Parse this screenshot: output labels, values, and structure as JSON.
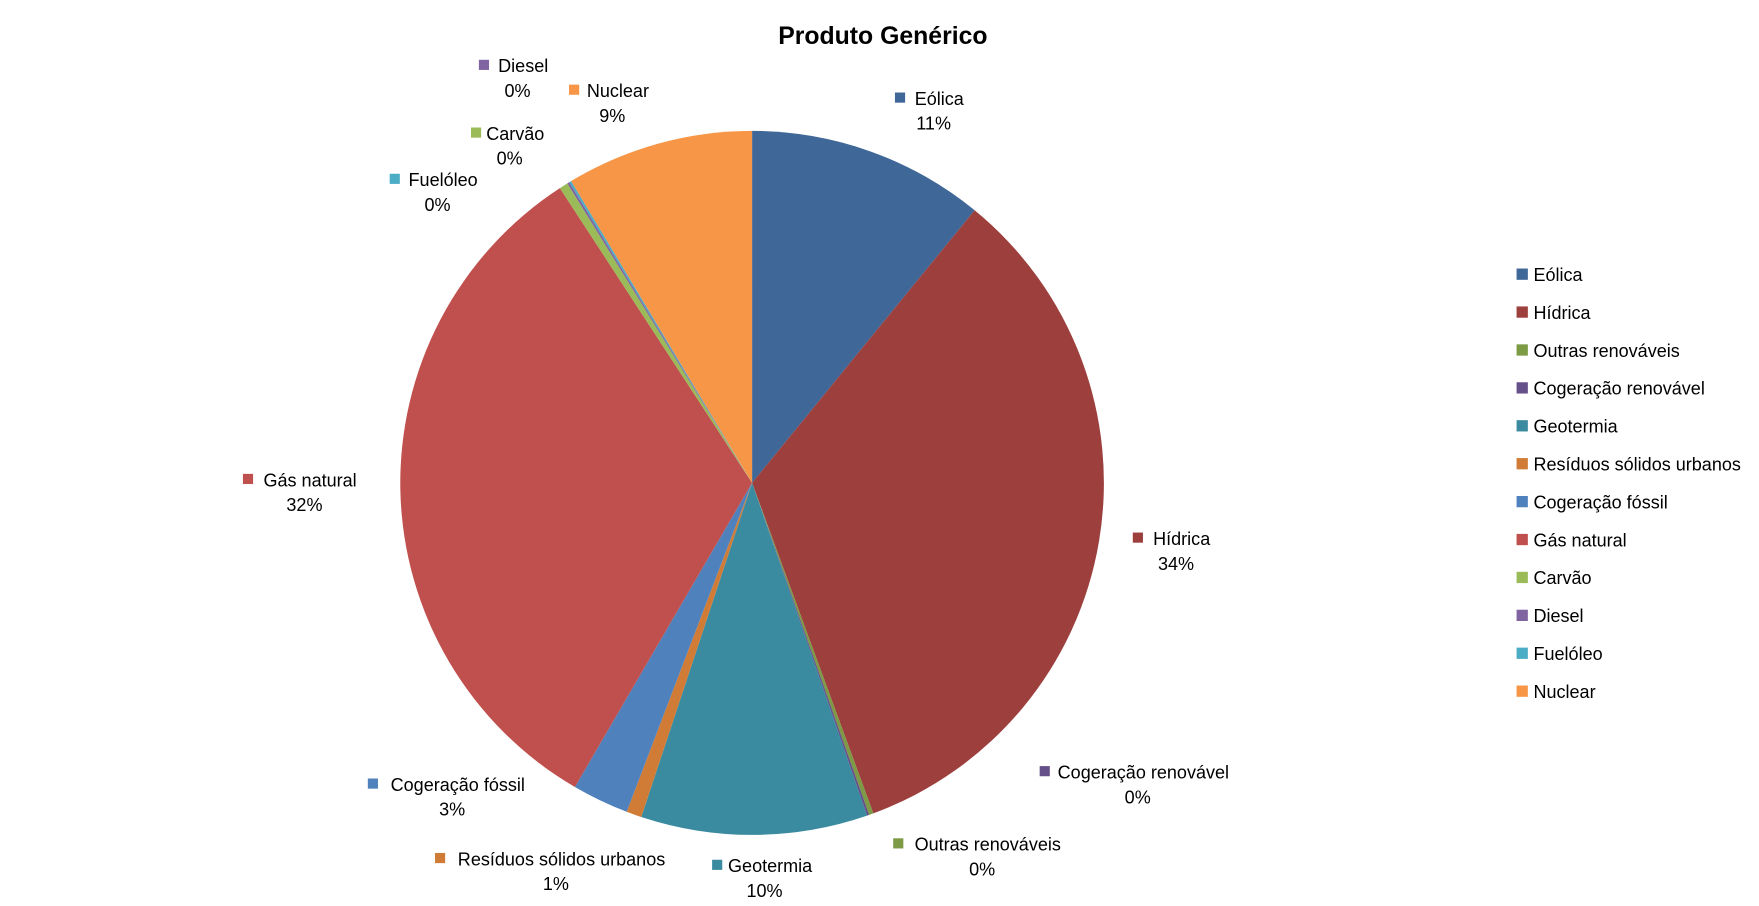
{
  "chart_data": {
    "type": "pie",
    "title": "Produto Genérico",
    "legend_position": "right",
    "slices": [
      {
        "label": "Eólica",
        "value": 10.9,
        "display": "11%",
        "color": "#3F6797"
      },
      {
        "label": "Hídrica",
        "value": 33.5,
        "display": "34%",
        "color": "#9C3F3D"
      },
      {
        "label": "Outras renováveis",
        "value": 0.2,
        "display": "0%",
        "color": "#7D9A44"
      },
      {
        "label": "Cogeração renovável",
        "value": 0.1,
        "display": "0%",
        "color": "#66508A"
      },
      {
        "label": "Geotermia",
        "value": 10.4,
        "display": "10%",
        "color": "#3B8BA0"
      },
      {
        "label": "Resíduos sólidos urbanos",
        "value": 0.7,
        "display": "1%",
        "color": "#D07C37"
      },
      {
        "label": "Cogeração fóssil",
        "value": 2.6,
        "display": "3%",
        "color": "#4F81BD"
      },
      {
        "label": "Gás natural",
        "value": 32.4,
        "display": "32%",
        "color": "#C0504D"
      },
      {
        "label": "Carvão",
        "value": 0.4,
        "display": "0%",
        "color": "#9BBB59"
      },
      {
        "label": "Diesel",
        "value": 0.1,
        "display": "0%",
        "color": "#8064A2"
      },
      {
        "label": "Fuelóleo",
        "value": 0.1,
        "display": "0%",
        "color": "#4BACC6"
      },
      {
        "label": "Nuclear",
        "value": 8.6,
        "display": "9%",
        "color": "#F79646"
      }
    ]
  }
}
